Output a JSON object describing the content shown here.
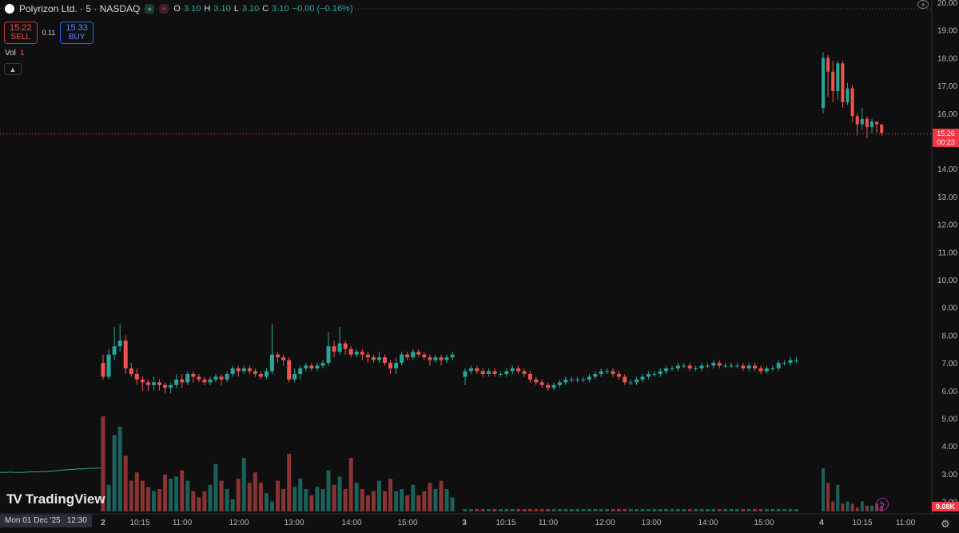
{
  "header": {
    "symbol_title": "Polyrizon Ltd. · 5 · NASDAQ",
    "ohlc": [
      {
        "key": "O",
        "value": "3.10"
      },
      {
        "key": "H",
        "value": "3.10"
      },
      {
        "key": "L",
        "value": "3.10"
      },
      {
        "key": "C",
        "value": "3.10"
      }
    ],
    "change": "−0.00 (−0.16%)"
  },
  "trade": {
    "sell_price": "15.22",
    "sell_label": "SELL",
    "spread": "0.11",
    "buy_price": "15.33",
    "buy_label": "BUY"
  },
  "volume_pane": {
    "label": "Vol",
    "value": "1",
    "collapse_icon": "chevron-up-icon"
  },
  "branding": {
    "logo_mark": "TV",
    "logo_text": "TradingView"
  },
  "price_axis": {
    "labels": [
      "20.00",
      "19.00",
      "18.00",
      "17.00",
      "16.00",
      "15.00",
      "14.00",
      "13.00",
      "12.00",
      "11.00",
      "10.00",
      "9.00",
      "8.00",
      "7.00",
      "6.00",
      "5.00",
      "4.00",
      "3.00",
      "2.00"
    ],
    "last_price": "15.26",
    "countdown": "00:23",
    "volume_tag": "9.08K"
  },
  "time_axis": {
    "crosshair_date": "Mon 01 Dec '25",
    "crosshair_time": "12:30"
  },
  "colors": {
    "up": "#26a69a",
    "down": "#ef5350",
    "background": "#0f0f0f"
  },
  "chart_data": {
    "type": "candlestick",
    "symbol": "Polyrizon Ltd.",
    "interval": "5",
    "exchange": "NASDAQ",
    "ylim": [
      1.6,
      20.1
    ],
    "last_price": 15.26,
    "x_ticks": [
      "2",
      "10:15",
      "11:00",
      "12:00",
      "13:00",
      "14:00",
      "15:00",
      "3",
      "10:15",
      "11:00",
      "12:00",
      "13:00",
      "14:00",
      "15:00",
      "4",
      "10:15",
      "11:00"
    ],
    "price_series": [
      {
        "segment": "Dec 1 (12:30–)",
        "values": [
          3.05,
          3.05,
          3.06,
          3.05,
          3.05,
          3.06,
          3.07,
          3.07,
          3.08,
          3.09,
          3.1,
          3.12,
          3.14,
          3.15,
          3.16,
          3.18,
          3.18,
          3.2,
          3.2,
          3.21
        ]
      }
    ],
    "candles_dec2": [
      [
        7.0,
        6.5,
        7.3,
        6.4
      ],
      [
        6.5,
        7.3,
        7.5,
        6.4
      ],
      [
        7.3,
        7.6,
        8.3,
        7.1
      ],
      [
        7.6,
        7.8,
        8.4,
        7.4
      ],
      [
        7.8,
        6.8,
        8.0,
        6.6
      ],
      [
        6.8,
        6.6,
        7.0,
        6.5
      ],
      [
        6.6,
        6.4,
        6.8,
        6.2
      ],
      [
        6.4,
        6.3,
        6.5,
        6.0
      ],
      [
        6.3,
        6.2,
        6.4,
        6.0
      ],
      [
        6.2,
        6.3,
        6.5,
        6.0
      ],
      [
        6.3,
        6.2,
        6.4,
        6.0
      ],
      [
        6.2,
        6.1,
        6.3,
        5.9
      ],
      [
        6.1,
        6.2,
        6.3,
        5.9
      ],
      [
        6.2,
        6.4,
        6.6,
        6.1
      ],
      [
        6.4,
        6.3,
        6.6,
        6.1
      ],
      [
        6.3,
        6.6,
        6.7,
        6.2
      ],
      [
        6.6,
        6.5,
        6.7,
        6.3
      ],
      [
        6.5,
        6.4,
        6.6,
        6.3
      ],
      [
        6.4,
        6.3,
        6.5,
        6.2
      ],
      [
        6.3,
        6.4,
        6.5,
        6.2
      ],
      [
        6.4,
        6.5,
        6.6,
        6.3
      ],
      [
        6.5,
        6.4,
        6.6,
        6.2
      ],
      [
        6.4,
        6.6,
        6.7,
        6.3
      ],
      [
        6.6,
        6.8,
        6.9,
        6.5
      ],
      [
        6.8,
        6.7,
        6.9,
        6.5
      ],
      [
        6.7,
        6.8,
        6.9,
        6.6
      ],
      [
        6.8,
        6.7,
        6.9,
        6.6
      ],
      [
        6.7,
        6.6,
        6.8,
        6.5
      ],
      [
        6.6,
        6.5,
        6.7,
        6.4
      ],
      [
        6.5,
        6.7,
        6.8,
        6.4
      ],
      [
        6.7,
        7.3,
        8.4,
        6.6
      ],
      [
        7.3,
        7.2,
        7.4,
        7.0
      ],
      [
        7.2,
        7.1,
        7.3,
        6.9
      ],
      [
        7.1,
        6.4,
        7.2,
        6.3
      ],
      [
        6.4,
        6.6,
        6.8,
        6.3
      ],
      [
        6.6,
        6.8,
        6.9,
        6.4
      ],
      [
        6.8,
        6.9,
        7.0,
        6.7
      ],
      [
        6.9,
        6.8,
        7.0,
        6.7
      ],
      [
        6.8,
        6.9,
        7.0,
        6.7
      ],
      [
        6.9,
        7.0,
        7.1,
        6.8
      ],
      [
        7.0,
        7.6,
        8.1,
        6.9
      ],
      [
        7.6,
        7.4,
        7.8,
        7.2
      ],
      [
        7.4,
        7.7,
        8.3,
        7.3
      ],
      [
        7.7,
        7.5,
        7.8,
        7.3
      ],
      [
        7.5,
        7.3,
        7.6,
        7.2
      ],
      [
        7.3,
        7.4,
        7.5,
        7.2
      ],
      [
        7.4,
        7.3,
        7.5,
        7.1
      ],
      [
        7.3,
        7.2,
        7.4,
        7.0
      ],
      [
        7.2,
        7.1,
        7.3,
        7.0
      ],
      [
        7.1,
        7.2,
        7.4,
        7.0
      ],
      [
        7.2,
        7.0,
        7.3,
        6.9
      ],
      [
        7.0,
        6.8,
        7.1,
        6.6
      ],
      [
        6.8,
        7.0,
        7.2,
        6.6
      ],
      [
        7.0,
        7.3,
        7.4,
        6.9
      ],
      [
        7.3,
        7.2,
        7.4,
        7.1
      ],
      [
        7.2,
        7.4,
        7.5,
        7.1
      ],
      [
        7.4,
        7.3,
        7.5,
        7.2
      ],
      [
        7.3,
        7.2,
        7.4,
        7.1
      ],
      [
        7.2,
        7.1,
        7.3,
        6.9
      ],
      [
        7.1,
        7.2,
        7.3,
        7.0
      ],
      [
        7.2,
        7.1,
        7.3,
        6.9
      ],
      [
        7.1,
        7.2,
        7.3,
        7.0
      ],
      [
        7.2,
        7.3,
        7.4,
        7.1
      ]
    ],
    "volume_dec2": [
      6.1,
      2.8,
      5.2,
      5.6,
      4.2,
      3.0,
      3.4,
      3.0,
      2.7,
      2.5,
      2.6,
      3.3,
      3.1,
      3.2,
      3.5,
      3.0,
      2.5,
      2.2,
      2.5,
      2.8,
      3.8,
      3.0,
      2.6,
      2.1,
      3.1,
      4.1,
      2.9,
      3.4,
      2.9,
      2.4,
      2.0,
      3.0,
      2.6,
      4.3,
      2.7,
      3.1,
      2.6,
      2.3,
      2.7,
      2.6,
      3.5,
      2.8,
      3.2,
      2.6,
      4.1,
      2.9,
      2.6,
      2.3,
      2.5,
      3.0,
      2.5,
      3.1,
      2.5,
      2.6,
      2.3,
      2.8,
      2.3,
      2.5,
      2.9,
      2.6,
      3.0,
      2.6,
      2.2
    ],
    "candles_dec3": [
      [
        6.5,
        6.7,
        6.8,
        6.2
      ],
      [
        6.7,
        6.8,
        6.9,
        6.6
      ],
      [
        6.8,
        6.7,
        6.9,
        6.6
      ],
      [
        6.7,
        6.6,
        6.8,
        6.5
      ],
      [
        6.6,
        6.7,
        6.8,
        6.5
      ],
      [
        6.7,
        6.6,
        6.8,
        6.5
      ],
      [
        6.6,
        6.6,
        6.7,
        6.5
      ],
      [
        6.6,
        6.7,
        6.8,
        6.5
      ],
      [
        6.7,
        6.8,
        6.9,
        6.6
      ],
      [
        6.8,
        6.7,
        6.9,
        6.6
      ],
      [
        6.7,
        6.6,
        6.8,
        6.5
      ],
      [
        6.6,
        6.4,
        6.7,
        6.3
      ],
      [
        6.4,
        6.3,
        6.5,
        6.2
      ],
      [
        6.3,
        6.2,
        6.4,
        6.1
      ],
      [
        6.2,
        6.1,
        6.3,
        6.0
      ],
      [
        6.1,
        6.2,
        6.3,
        6.0
      ],
      [
        6.2,
        6.3,
        6.4,
        6.1
      ],
      [
        6.3,
        6.4,
        6.5,
        6.2
      ],
      [
        6.4,
        6.4,
        6.5,
        6.3
      ],
      [
        6.4,
        6.4,
        6.5,
        6.3
      ],
      [
        6.4,
        6.4,
        6.5,
        6.3
      ],
      [
        6.4,
        6.5,
        6.6,
        6.3
      ],
      [
        6.5,
        6.6,
        6.7,
        6.4
      ],
      [
        6.6,
        6.7,
        6.8,
        6.5
      ],
      [
        6.7,
        6.7,
        6.8,
        6.6
      ],
      [
        6.7,
        6.6,
        6.8,
        6.5
      ],
      [
        6.6,
        6.5,
        6.7,
        6.4
      ],
      [
        6.5,
        6.3,
        6.6,
        6.2
      ],
      [
        6.3,
        6.3,
        6.4,
        6.2
      ],
      [
        6.3,
        6.4,
        6.5,
        6.2
      ],
      [
        6.4,
        6.5,
        6.6,
        6.3
      ],
      [
        6.5,
        6.6,
        6.7,
        6.4
      ],
      [
        6.6,
        6.6,
        6.7,
        6.5
      ],
      [
        6.6,
        6.7,
        6.8,
        6.5
      ],
      [
        6.7,
        6.8,
        6.9,
        6.6
      ],
      [
        6.8,
        6.8,
        6.9,
        6.7
      ],
      [
        6.8,
        6.9,
        7.0,
        6.7
      ],
      [
        6.9,
        6.9,
        7.0,
        6.8
      ],
      [
        6.9,
        6.8,
        7.0,
        6.7
      ],
      [
        6.8,
        6.8,
        6.9,
        6.7
      ],
      [
        6.8,
        6.9,
        7.0,
        6.7
      ],
      [
        6.9,
        6.9,
        7.0,
        6.8
      ],
      [
        6.9,
        7.0,
        7.1,
        6.8
      ],
      [
        7.0,
        6.9,
        7.1,
        6.8
      ],
      [
        6.9,
        6.9,
        7.0,
        6.8
      ],
      [
        6.9,
        6.9,
        7.0,
        6.8
      ],
      [
        6.9,
        6.9,
        7.0,
        6.8
      ],
      [
        6.9,
        6.8,
        7.0,
        6.7
      ],
      [
        6.8,
        6.9,
        7.0,
        6.7
      ],
      [
        6.9,
        6.8,
        7.0,
        6.7
      ],
      [
        6.8,
        6.7,
        6.9,
        6.6
      ],
      [
        6.7,
        6.8,
        6.9,
        6.6
      ],
      [
        6.8,
        6.8,
        6.9,
        6.7
      ],
      [
        6.8,
        7.0,
        7.1,
        6.7
      ],
      [
        7.0,
        7.0,
        7.1,
        6.9
      ],
      [
        7.0,
        7.1,
        7.2,
        6.9
      ],
      [
        7.1,
        7.1,
        7.2,
        7.0
      ]
    ],
    "candles_dec4": [
      [
        16.2,
        18.0,
        18.2,
        16.0
      ],
      [
        18.0,
        17.5,
        18.1,
        16.6
      ],
      [
        17.5,
        16.8,
        17.9,
        16.4
      ],
      [
        16.8,
        17.8,
        17.9,
        16.5
      ],
      [
        17.8,
        16.4,
        17.9,
        16.2
      ],
      [
        16.4,
        16.9,
        17.1,
        16.3
      ],
      [
        16.9,
        15.9,
        17.0,
        15.7
      ],
      [
        15.9,
        15.6,
        16.0,
        15.2
      ],
      [
        15.6,
        15.8,
        16.2,
        15.4
      ],
      [
        15.8,
        15.5,
        15.9,
        15.1
      ],
      [
        15.5,
        15.7,
        15.8,
        15.3
      ],
      [
        15.7,
        15.6,
        15.7,
        15.3
      ],
      [
        15.6,
        15.3,
        15.6,
        15.2
      ]
    ],
    "volume_dec4": [
      3.6,
      2.9,
      2.0,
      2.8,
      1.9,
      2.0,
      1.9,
      1.7,
      2.0,
      1.8,
      1.8,
      1.9,
      1.8
    ]
  }
}
